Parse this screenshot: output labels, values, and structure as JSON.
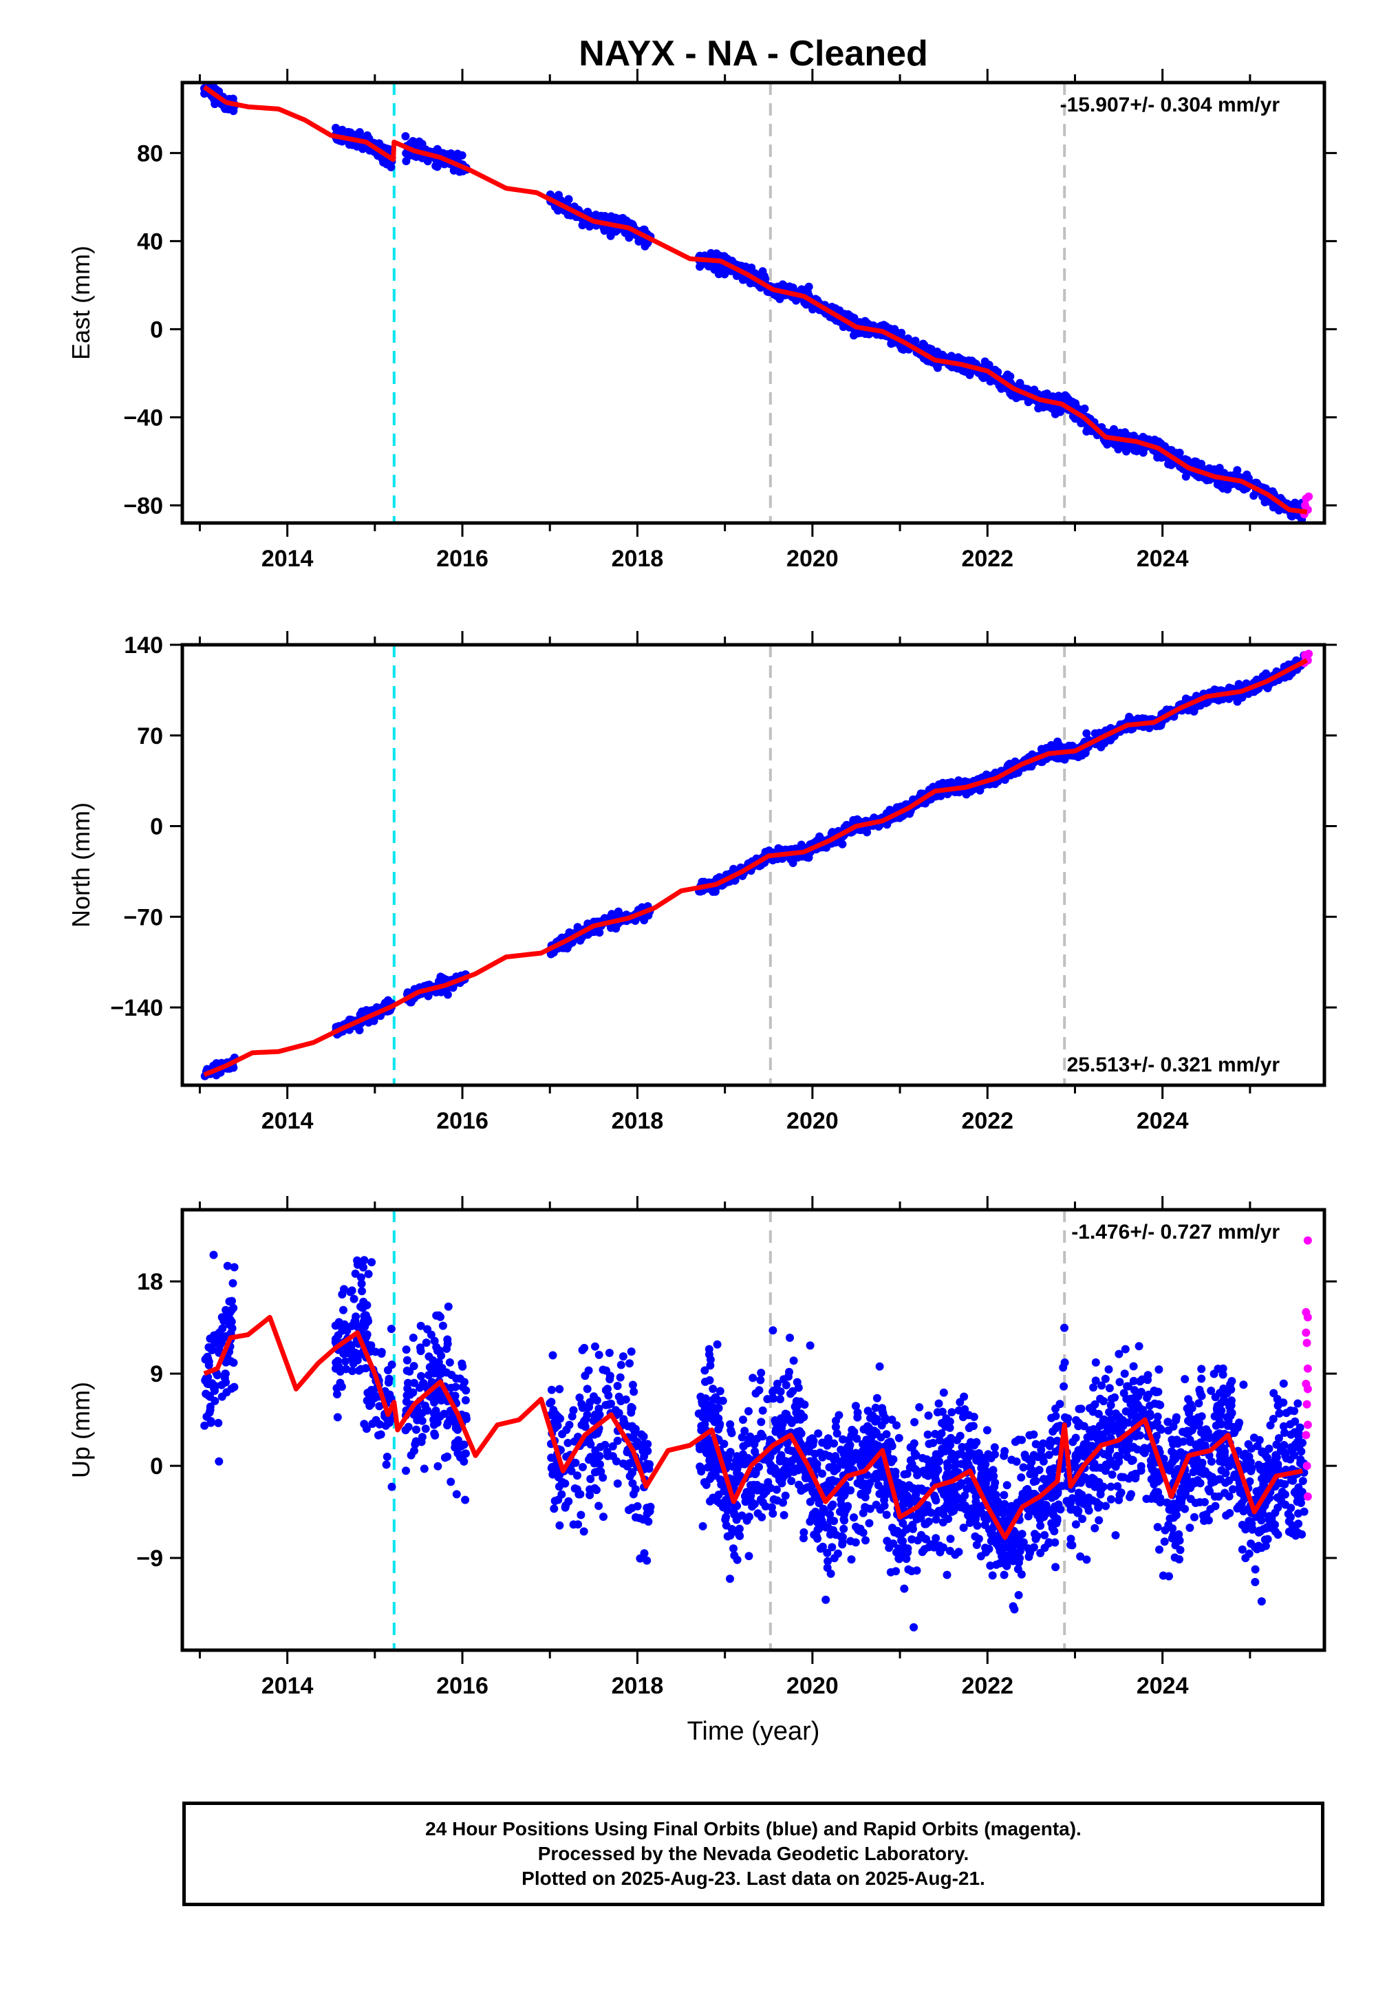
{
  "title": "NAYX  - NA - Cleaned",
  "xlabel": "Time (year)",
  "colors": {
    "final_orbits": "#0000ff",
    "rapid_orbits": "#ff00ff",
    "model": "#ff0000",
    "equipment_change": "#00e5ee",
    "other_event": "#c0c0c0"
  },
  "footer": {
    "line1": "24 Hour Positions Using Final Orbits (blue) and Rapid Orbits (magenta).",
    "line2": "Processed by the Nevada Geodetic Laboratory.",
    "line3": "Plotted on 2025-Aug-23. Last data on 2025-Aug-21."
  },
  "chart_data": [
    {
      "type": "scatter",
      "name_panel": "East",
      "ylabel": "East (mm)",
      "rate": "-15.907+/- 0.304 mm/yr",
      "rate_position": "top-right",
      "xlim": [
        2012.8,
        2025.85
      ],
      "ylim": [
        -88,
        112
      ],
      "yticks": [
        -80,
        -40,
        0,
        40,
        80
      ],
      "xticks": [
        2014,
        2016,
        2018,
        2020,
        2022,
        2024
      ],
      "event_lines": [
        {
          "x": 2015.22,
          "kind": "equipment_change"
        },
        {
          "x": 2019.52,
          "kind": "other_event"
        },
        {
          "x": 2022.88,
          "kind": "other_event"
        }
      ],
      "model": [
        [
          2013.05,
          110
        ],
        [
          2013.3,
          103
        ],
        [
          2013.55,
          101
        ],
        [
          2013.9,
          100
        ],
        [
          2014.2,
          95
        ],
        [
          2014.5,
          88
        ],
        [
          2014.9,
          85
        ],
        [
          2015.21,
          77
        ],
        [
          2015.22,
          85
        ],
        [
          2015.45,
          81
        ],
        [
          2015.75,
          78
        ],
        [
          2016.1,
          72
        ],
        [
          2016.5,
          64
        ],
        [
          2016.85,
          62
        ],
        [
          2017.1,
          57
        ],
        [
          2017.5,
          49
        ],
        [
          2017.9,
          46
        ],
        [
          2018.2,
          40
        ],
        [
          2018.6,
          32
        ],
        [
          2018.95,
          31
        ],
        [
          2019.25,
          25
        ],
        [
          2019.55,
          18
        ],
        [
          2019.9,
          15
        ],
        [
          2020.2,
          8
        ],
        [
          2020.5,
          1
        ],
        [
          2020.8,
          -1
        ],
        [
          2021.05,
          -6
        ],
        [
          2021.4,
          -14
        ],
        [
          2021.7,
          -16
        ],
        [
          2022.0,
          -19
        ],
        [
          2022.3,
          -27
        ],
        [
          2022.6,
          -32
        ],
        [
          2022.85,
          -34
        ],
        [
          2023.1,
          -40
        ],
        [
          2023.35,
          -49
        ],
        [
          2023.7,
          -51
        ],
        [
          2023.95,
          -54
        ],
        [
          2024.3,
          -63
        ],
        [
          2024.6,
          -67
        ],
        [
          2024.9,
          -69
        ],
        [
          2025.2,
          -75
        ],
        [
          2025.45,
          -82
        ],
        [
          2025.65,
          -83
        ]
      ],
      "data_segments": [
        {
          "start": 2013.05,
          "end": 2013.4,
          "n": 60,
          "spread": 3
        },
        {
          "start": 2014.55,
          "end": 2015.2,
          "n": 120,
          "spread": 3
        },
        {
          "start": 2015.35,
          "end": 2016.05,
          "n": 120,
          "spread": 3
        },
        {
          "start": 2017.0,
          "end": 2018.15,
          "n": 200,
          "spread": 3
        },
        {
          "start": 2018.7,
          "end": 2025.62,
          "n": 1400,
          "spread": 3
        }
      ],
      "rapid_points": [
        [
          2025.62,
          -84
        ],
        [
          2025.63,
          -80
        ],
        [
          2025.64,
          -77
        ],
        [
          2025.66,
          -82
        ],
        [
          2025.67,
          -76
        ]
      ]
    },
    {
      "type": "scatter",
      "name_panel": "North",
      "ylabel": "North (mm)",
      "rate": "25.513+/- 0.321 mm/yr",
      "rate_position": "bottom-right",
      "xlim": [
        2012.8,
        2025.85
      ],
      "ylim": [
        -200,
        140
      ],
      "yticks": [
        -140,
        -70,
        0,
        70,
        140
      ],
      "xticks": [
        2014,
        2016,
        2018,
        2020,
        2022,
        2024
      ],
      "event_lines": [
        {
          "x": 2015.22,
          "kind": "equipment_change"
        },
        {
          "x": 2019.52,
          "kind": "other_event"
        },
        {
          "x": 2022.88,
          "kind": "other_event"
        }
      ],
      "model": [
        [
          2013.05,
          -192
        ],
        [
          2013.3,
          -185
        ],
        [
          2013.6,
          -175
        ],
        [
          2013.9,
          -174
        ],
        [
          2014.3,
          -167
        ],
        [
          2014.6,
          -157
        ],
        [
          2014.9,
          -148
        ],
        [
          2015.2,
          -139
        ],
        [
          2015.5,
          -128
        ],
        [
          2015.8,
          -123
        ],
        [
          2016.15,
          -114
        ],
        [
          2016.5,
          -101
        ],
        [
          2016.9,
          -98
        ],
        [
          2017.2,
          -88
        ],
        [
          2017.5,
          -77
        ],
        [
          2017.9,
          -71
        ],
        [
          2018.2,
          -63
        ],
        [
          2018.5,
          -50
        ],
        [
          2018.9,
          -45
        ],
        [
          2019.2,
          -35
        ],
        [
          2019.5,
          -23
        ],
        [
          2019.9,
          -20
        ],
        [
          2020.2,
          -11
        ],
        [
          2020.5,
          0
        ],
        [
          2020.8,
          4
        ],
        [
          2021.1,
          14
        ],
        [
          2021.4,
          27
        ],
        [
          2021.75,
          30
        ],
        [
          2022.1,
          37
        ],
        [
          2022.4,
          48
        ],
        [
          2022.7,
          56
        ],
        [
          2023.0,
          58
        ],
        [
          2023.35,
          70
        ],
        [
          2023.6,
          78
        ],
        [
          2023.9,
          80
        ],
        [
          2024.2,
          91
        ],
        [
          2024.5,
          100
        ],
        [
          2024.9,
          104
        ],
        [
          2025.2,
          112
        ],
        [
          2025.45,
          121
        ],
        [
          2025.65,
          128
        ]
      ],
      "data_segments": [
        {
          "start": 2013.05,
          "end": 2013.4,
          "n": 60,
          "spread": 4
        },
        {
          "start": 2014.55,
          "end": 2015.2,
          "n": 120,
          "spread": 4
        },
        {
          "start": 2015.35,
          "end": 2016.05,
          "n": 120,
          "spread": 4
        },
        {
          "start": 2017.0,
          "end": 2018.15,
          "n": 200,
          "spread": 4
        },
        {
          "start": 2018.7,
          "end": 2025.62,
          "n": 1400,
          "spread": 4
        }
      ],
      "rapid_points": [
        [
          2025.62,
          126
        ],
        [
          2025.63,
          132
        ],
        [
          2025.64,
          130
        ],
        [
          2025.66,
          128
        ],
        [
          2025.67,
          133
        ]
      ]
    },
    {
      "type": "scatter",
      "name_panel": "Up",
      "ylabel": "Up (mm)",
      "rate": "-1.476+/- 0.727 mm/yr",
      "rate_position": "top-right",
      "xlim": [
        2012.8,
        2025.85
      ],
      "ylim": [
        -18,
        25
      ],
      "yticks": [
        -9,
        0,
        9,
        18
      ],
      "xticks": [
        2014,
        2016,
        2018,
        2020,
        2022,
        2024
      ],
      "event_lines": [
        {
          "x": 2015.22,
          "kind": "equipment_change"
        },
        {
          "x": 2019.52,
          "kind": "other_event"
        },
        {
          "x": 2022.88,
          "kind": "other_event"
        }
      ],
      "model": [
        [
          2013.05,
          9
        ],
        [
          2013.2,
          9.5
        ],
        [
          2013.35,
          12.5
        ],
        [
          2013.55,
          12.8
        ],
        [
          2013.8,
          14.5
        ],
        [
          2014.1,
          7.5
        ],
        [
          2014.35,
          10
        ],
        [
          2014.55,
          11.5
        ],
        [
          2014.8,
          13
        ],
        [
          2015.0,
          9
        ],
        [
          2015.15,
          5
        ],
        [
          2015.22,
          6.2
        ],
        [
          2015.26,
          3.5
        ],
        [
          2015.45,
          6
        ],
        [
          2015.75,
          8.2
        ],
        [
          2015.95,
          5
        ],
        [
          2016.15,
          1
        ],
        [
          2016.4,
          4
        ],
        [
          2016.65,
          4.5
        ],
        [
          2016.9,
          6.5
        ],
        [
          2017.15,
          -0.5
        ],
        [
          2017.4,
          3
        ],
        [
          2017.7,
          5
        ],
        [
          2017.95,
          1.5
        ],
        [
          2018.1,
          -2
        ],
        [
          2018.35,
          1.5
        ],
        [
          2018.6,
          2
        ],
        [
          2018.85,
          3.5
        ],
        [
          2019.1,
          -3.5
        ],
        [
          2019.3,
          0
        ],
        [
          2019.55,
          2
        ],
        [
          2019.75,
          3
        ],
        [
          2019.95,
          0
        ],
        [
          2020.15,
          -3.5
        ],
        [
          2020.4,
          -1
        ],
        [
          2020.6,
          -0.5
        ],
        [
          2020.8,
          1.5
        ],
        [
          2021.0,
          -5
        ],
        [
          2021.2,
          -4
        ],
        [
          2021.4,
          -2
        ],
        [
          2021.6,
          -1.5
        ],
        [
          2021.8,
          -0.5
        ],
        [
          2022.0,
          -4
        ],
        [
          2022.2,
          -7
        ],
        [
          2022.4,
          -4
        ],
        [
          2022.6,
          -3
        ],
        [
          2022.8,
          -1.5
        ],
        [
          2022.88,
          4
        ],
        [
          2022.95,
          -2
        ],
        [
          2023.1,
          0
        ],
        [
          2023.3,
          2
        ],
        [
          2023.5,
          2.5
        ],
        [
          2023.8,
          4.5
        ],
        [
          2024.1,
          -3
        ],
        [
          2024.3,
          1
        ],
        [
          2024.55,
          1.5
        ],
        [
          2024.75,
          3
        ],
        [
          2025.05,
          -4.5
        ],
        [
          2025.3,
          -1
        ],
        [
          2025.6,
          -0.5
        ]
      ],
      "data_segments": [
        {
          "start": 2013.05,
          "end": 2013.4,
          "n": 90,
          "spread": 9
        },
        {
          "start": 2014.55,
          "end": 2015.2,
          "n": 170,
          "spread": 9
        },
        {
          "start": 2015.35,
          "end": 2016.05,
          "n": 170,
          "spread": 9
        },
        {
          "start": 2017.0,
          "end": 2018.15,
          "n": 240,
          "spread": 9
        },
        {
          "start": 2018.7,
          "end": 2025.62,
          "n": 2200,
          "spread": 9
        }
      ],
      "rapid_points": [
        [
          2025.66,
          22
        ],
        [
          2025.64,
          15
        ],
        [
          2025.66,
          14.5
        ],
        [
          2025.64,
          13
        ],
        [
          2025.65,
          12
        ],
        [
          2025.66,
          9.5
        ],
        [
          2025.64,
          8
        ],
        [
          2025.66,
          7.5
        ],
        [
          2025.65,
          6
        ],
        [
          2025.66,
          4
        ],
        [
          2025.64,
          3
        ],
        [
          2025.65,
          0
        ],
        [
          2025.66,
          -3
        ]
      ]
    }
  ]
}
